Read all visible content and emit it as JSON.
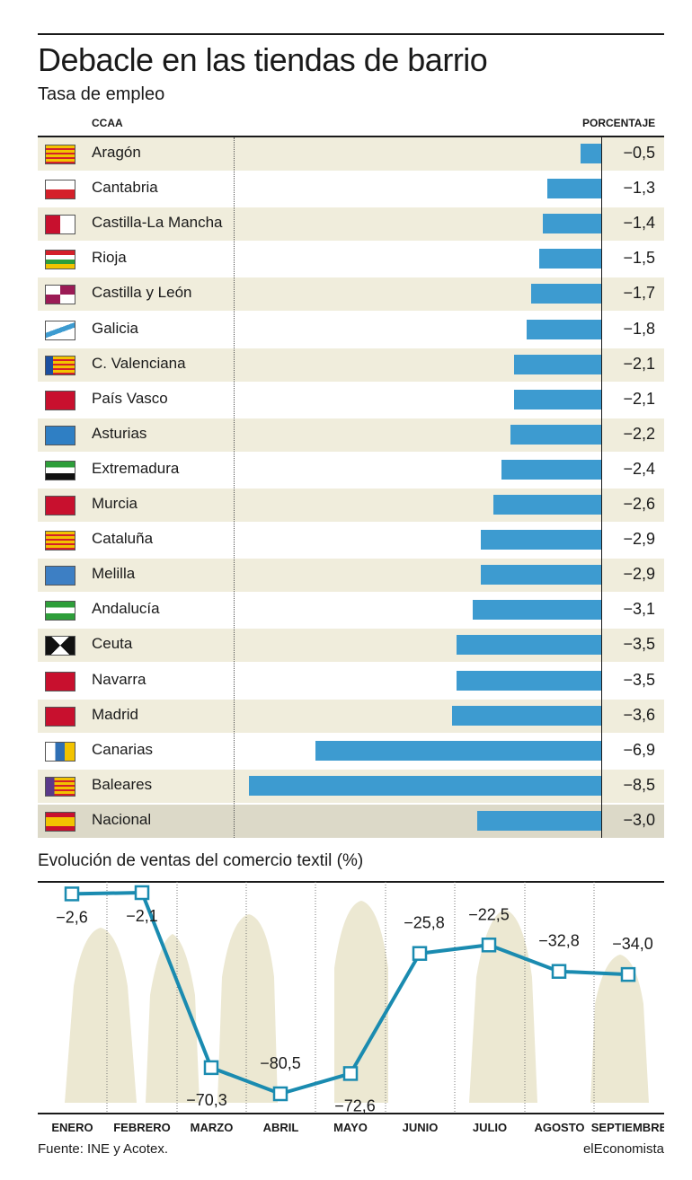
{
  "title": "Debacle en las tiendas de barrio",
  "subtitle": "Tasa de empleo",
  "table_header": {
    "ccaa": "CCAA",
    "pct": "PORCENTAJE"
  },
  "chart_data": [
    {
      "type": "bar",
      "orientation": "horizontal",
      "title": "Tasa de empleo",
      "categories": [
        "Aragón",
        "Cantabria",
        "Castilla-La Mancha",
        "Rioja",
        "Castilla y León",
        "Galicia",
        "C. Valenciana",
        "País Vasco",
        "Asturias",
        "Extremadura",
        "Murcia",
        "Cataluña",
        "Melilla",
        "Andalucía",
        "Ceuta",
        "Navarra",
        "Madrid",
        "Canarias",
        "Baleares",
        "Nacional"
      ],
      "values": [
        -0.5,
        -1.3,
        -1.4,
        -1.5,
        -1.7,
        -1.8,
        -2.1,
        -2.1,
        -2.2,
        -2.4,
        -2.6,
        -2.9,
        -2.9,
        -3.1,
        -3.5,
        -3.5,
        -3.6,
        -6.9,
        -8.5,
        -3.0
      ],
      "labels": [
        "−0,5",
        "−1,3",
        "−1,4",
        "−1,5",
        "−1,7",
        "−1,8",
        "−2,1",
        "−2,1",
        "−2,2",
        "−2,4",
        "−2,6",
        "−2,9",
        "−2,9",
        "−3,1",
        "−3,5",
        "−3,5",
        "−3,6",
        "−6,9",
        "−8,5",
        "−3,0"
      ],
      "bar_color": "#3d9bd0",
      "row_shade": "#f0eddc",
      "nacional_shade": "#dcd9c8",
      "xlim": [
        -9,
        0
      ]
    },
    {
      "type": "line",
      "title": "Evolución de ventas del comercio textil (%)",
      "categories": [
        "ENERO",
        "FEBRERO",
        "MARZO",
        "ABRIL",
        "MAYO",
        "JUNIO",
        "JULIO",
        "AGOSTO",
        "SEPTIEMBRE"
      ],
      "values": [
        -2.6,
        -2.1,
        -70.3,
        -80.5,
        -72.6,
        -25.8,
        -22.5,
        -32.8,
        -34.0
      ],
      "labels": [
        "−2,6",
        "−2,1",
        "−70,3",
        "−80,5",
        "−72,6",
        "−25,8",
        "−22,5",
        "−32,8",
        "−34,0"
      ],
      "line_color": "#1a8bb0",
      "ylim": [
        -85,
        0
      ]
    }
  ],
  "source": "Fuente: INE y Acotex.",
  "brand": "elEconomista"
}
